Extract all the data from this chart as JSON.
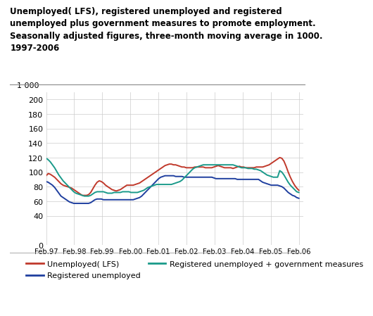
{
  "title": "Unemployed( LFS), registered unemployed and registered\nunemployed plus government measures to promote employment.\nSeasonally adjusted figures, three-month moving average in 1000.\n1997-2006",
  "ylabel_top": "1 000",
  "yticks": [
    0,
    40,
    60,
    80,
    100,
    120,
    140,
    160,
    180,
    200
  ],
  "ytick_labels": [
    "0",
    "40",
    "60",
    "80",
    "100",
    "120",
    "140",
    "160",
    "180",
    "200"
  ],
  "xtick_labels": [
    "Feb.97",
    "Feb.98",
    "Feb.99",
    "Feb.00",
    "Feb.01",
    "Feb.02",
    "Feb.03",
    "Feb.04",
    "Feb.05",
    "Feb.06"
  ],
  "ylim": [
    0,
    210
  ],
  "colors": {
    "lfs": "#c0392b",
    "registered": "#1f3f9f",
    "gov": "#1a9a8a"
  },
  "legend": [
    {
      "label": "Unemployed( LFS)",
      "color": "#c0392b"
    },
    {
      "label": "Registered unemployed",
      "color": "#1f3f9f"
    },
    {
      "label": "Registered unemployed + government measures",
      "color": "#1a9a8a"
    }
  ],
  "background": "#ffffff",
  "grid_color": "#cccccc",
  "lfs_data": [
    95,
    98,
    97,
    95,
    93,
    90,
    87,
    84,
    82,
    81,
    80,
    79,
    78,
    76,
    74,
    72,
    70,
    68,
    68,
    68,
    69,
    72,
    77,
    82,
    86,
    88,
    87,
    85,
    82,
    80,
    78,
    76,
    75,
    74,
    75,
    76,
    78,
    80,
    82,
    82,
    82,
    82,
    83,
    84,
    85,
    87,
    89,
    91,
    93,
    95,
    97,
    99,
    101,
    103,
    105,
    107,
    109,
    110,
    111,
    111,
    110,
    110,
    109,
    108,
    107,
    107,
    106,
    106,
    106,
    106,
    107,
    107,
    107,
    107,
    107,
    106,
    106,
    106,
    106,
    107,
    108,
    109,
    108,
    107,
    106,
    106,
    106,
    106,
    105,
    106,
    107,
    108,
    107,
    107,
    106,
    106,
    106,
    106,
    106,
    107,
    107,
    107,
    107,
    108,
    109,
    110,
    112,
    114,
    116,
    118,
    120,
    119,
    115,
    108,
    100,
    93,
    87,
    82,
    78,
    75
  ],
  "registered_data": [
    87,
    86,
    84,
    82,
    79,
    75,
    71,
    67,
    65,
    63,
    61,
    59,
    58,
    57,
    57,
    57,
    57,
    57,
    57,
    57,
    57,
    58,
    60,
    62,
    63,
    63,
    63,
    62,
    62,
    62,
    62,
    62,
    62,
    62,
    62,
    62,
    62,
    62,
    62,
    62,
    62,
    62,
    63,
    64,
    65,
    67,
    70,
    73,
    76,
    79,
    82,
    85,
    88,
    91,
    93,
    94,
    95,
    95,
    95,
    95,
    95,
    94,
    94,
    94,
    94,
    93,
    93,
    93,
    93,
    93,
    93,
    93,
    93,
    93,
    93,
    93,
    93,
    93,
    93,
    92,
    91,
    91,
    91,
    91,
    91,
    91,
    91,
    91,
    91,
    91,
    90,
    90,
    90,
    90,
    90,
    90,
    90,
    90,
    90,
    90,
    90,
    88,
    86,
    85,
    84,
    83,
    82,
    82,
    82,
    82,
    81,
    80,
    78,
    75,
    72,
    70,
    68,
    67,
    65,
    64
  ],
  "gov_data": [
    119,
    117,
    114,
    110,
    106,
    101,
    96,
    92,
    88,
    85,
    82,
    79,
    76,
    73,
    71,
    70,
    69,
    68,
    67,
    67,
    67,
    68,
    70,
    72,
    73,
    73,
    73,
    73,
    72,
    71,
    71,
    71,
    72,
    72,
    72,
    72,
    73,
    73,
    73,
    73,
    72,
    72,
    72,
    72,
    73,
    74,
    75,
    77,
    79,
    80,
    81,
    82,
    83,
    83,
    83,
    83,
    83,
    83,
    83,
    83,
    84,
    85,
    86,
    87,
    89,
    92,
    95,
    98,
    101,
    104,
    106,
    107,
    108,
    109,
    110,
    110,
    110,
    110,
    110,
    110,
    110,
    110,
    110,
    110,
    110,
    110,
    110,
    110,
    110,
    109,
    108,
    107,
    106,
    106,
    106,
    105,
    105,
    105,
    104,
    104,
    103,
    102,
    100,
    98,
    96,
    95,
    94,
    93,
    93,
    93,
    102,
    100,
    96,
    91,
    86,
    82,
    79,
    76,
    73,
    72
  ]
}
